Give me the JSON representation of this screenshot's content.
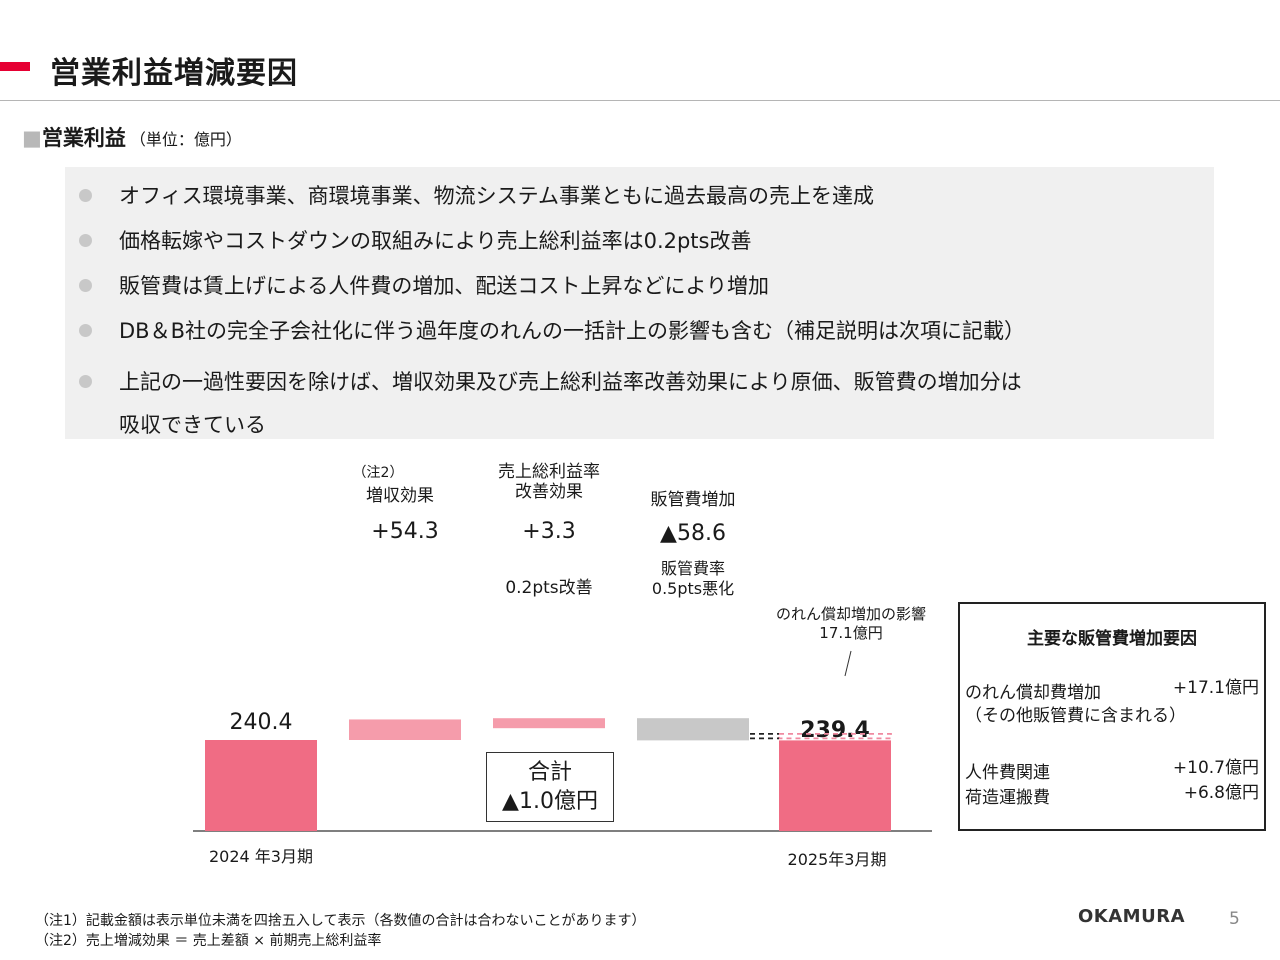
{
  "title": "営業利益増減要因",
  "section": {
    "square": "■",
    "label": "営業利益",
    "unit": "（単位：億円）"
  },
  "bullets": [
    {
      "text": "オフィス環境事業、商環境事業、物流システム事業ともに過去最高の売上を達成"
    },
    {
      "text": "価格転嫁やコストダウンの取組みにより売上総利益率は0.2pts改善"
    },
    {
      "text": "販管費は賃上げによる人件費の増加、配送コスト上昇などにより増加"
    },
    {
      "text": "DB＆B社の完全子会社化に伴う過年度のれんの一括計上の影響も含む（補足説明は次項に記載）"
    },
    {
      "text": "上記の一過性要因を除けば、増収効果及び売上総利益率改善効果により原価、販管費の増加分は",
      "cont": "吸収できている"
    }
  ],
  "chart_data": {
    "type": "bar",
    "subtype": "waterfall",
    "unit": "億円",
    "steps": [
      {
        "key": "start",
        "category": "2024 年3月期",
        "kind": "total",
        "value": 240.4,
        "value_label": "240.4",
        "color": "#f06c84"
      },
      {
        "key": "sales",
        "category": "増収効果",
        "note": "（注2）",
        "kind": "increase",
        "value": 54.3,
        "value_label": "+54.3",
        "color": "#f59cab"
      },
      {
        "key": "margin",
        "category": "売上総利益率\n改善効果",
        "kind": "increase",
        "value": 3.3,
        "value_label": "+3.3",
        "sublabel": "0.2pts改善",
        "color": "#f59cab"
      },
      {
        "key": "sga",
        "category": "販管費増加",
        "kind": "decrease",
        "value": -58.6,
        "value_label": "▲58.6",
        "sublabel": "販管費率\n0.5pts悪化",
        "color": "#c8c8c8"
      },
      {
        "key": "end",
        "category": "2025年3月期",
        "kind": "total",
        "value": 239.4,
        "value_label": "239.4",
        "color": "#f06c84"
      }
    ],
    "goodwill": {
      "label": "のれん償却増加の影響\n17.1億円",
      "value": 17.1
    },
    "total": {
      "title": "合計",
      "value_label": "▲1.0億円"
    }
  },
  "factors": {
    "title": "主要な販管費増加要因",
    "rows": [
      {
        "label": "のれん償却費増加",
        "value": "+17.1億円",
        "sub": "（その他販管費に含まれる）"
      },
      {
        "label": "人件費関連",
        "value": "+10.7億円"
      },
      {
        "label": "荷造運搬費",
        "value": "+6.8億円"
      }
    ]
  },
  "footnotes": [
    "（注1）記載金額は表示単位未満を四捨五入して表示（各数値の合計は合わないことがあります）",
    "（注2）売上増減効果 ＝ 売上差額 × 前期売上総利益率"
  ],
  "logo": "OKAMURA",
  "page_number": "5"
}
